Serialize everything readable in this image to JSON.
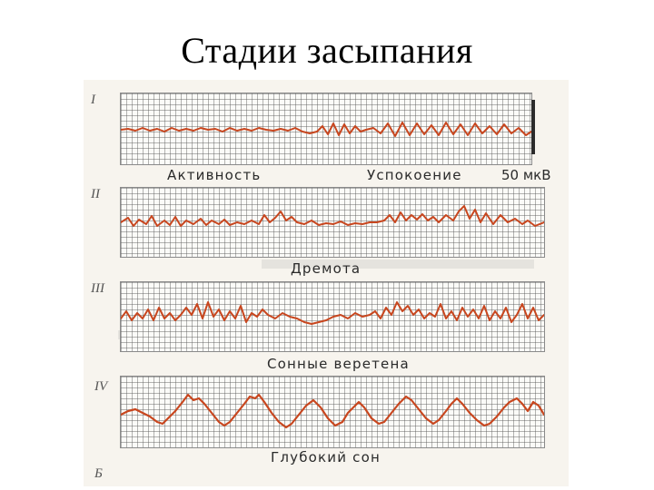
{
  "title": "Стадии засыпания",
  "stages": [
    {
      "numeral": "I",
      "captions": [
        "Активность",
        "Успокоение"
      ],
      "scale": "50 мкВ"
    },
    {
      "numeral": "II",
      "captions": [
        "Дремота"
      ]
    },
    {
      "numeral": "III",
      "captions": [
        "Сонные веретена"
      ]
    },
    {
      "numeral": "IV",
      "captions": [
        "Глубокий сон"
      ]
    }
  ],
  "panel_label": "Б",
  "trace_color": "#c8461e"
}
